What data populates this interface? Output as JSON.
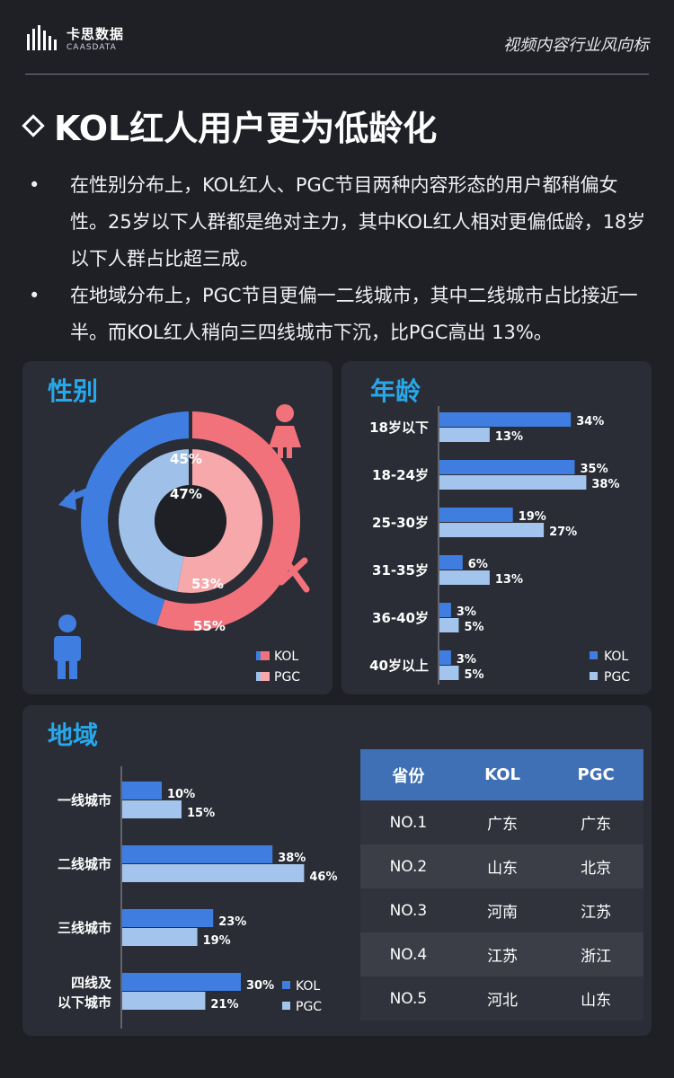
{
  "brand": {
    "name_cn": "卡思数据",
    "name_en": "CAASDATA"
  },
  "header": {
    "section": "视频内容行业风向标"
  },
  "title": "KOL红人用户更为低龄化",
  "bullets": [
    "在性别分布上，KOL红人、PGC节目两种内容形态的用户都稍偏女性。25岁以下人群都是绝对主力，其中KOL红人相对更偏低龄，18岁以下人群占比超三成。",
    "在地域分布上，PGC节目更偏一二线城市，其中二线城市占比接近一半。而KOL红人稍向三四线城市下沉，比PGC高出 13%。"
  ],
  "colors": {
    "kol_male": "#3f7ee0",
    "pgc_male": "#9fc0e8",
    "kol_female": "#f2727c",
    "pgc_female": "#f6a8aa",
    "kol_bar": "#3f7ee0",
    "pgc_bar": "#a3c4ec",
    "accent": "#28a8ea"
  },
  "panels": {
    "gender": "性别",
    "age": "年龄",
    "region": "地域"
  },
  "legend": {
    "kol": "KOL",
    "pgc": "PGC"
  },
  "icons": {
    "male": "male-symbol-icon",
    "female": "female-symbol-icon",
    "male_person": "male-person-icon",
    "female_person": "female-person-icon"
  },
  "chart_data": [
    {
      "type": "pie",
      "title": "性别",
      "series": [
        {
          "name": "KOL",
          "categories": [
            "男",
            "女"
          ],
          "values": [
            45,
            55
          ],
          "labels": [
            "45%",
            "55%"
          ]
        },
        {
          "name": "PGC",
          "categories": [
            "男",
            "女"
          ],
          "values": [
            47,
            53
          ],
          "labels": [
            "47%",
            "53%"
          ]
        }
      ]
    },
    {
      "type": "bar",
      "orientation": "horizontal",
      "title": "年龄",
      "categories": [
        "18岁以下",
        "18-24岁",
        "25-30岁",
        "31-35岁",
        "36-40岁",
        "40岁以上"
      ],
      "series": [
        {
          "name": "KOL",
          "values": [
            34,
            35,
            19,
            6,
            3,
            3
          ],
          "labels": [
            "34%",
            "35%",
            "19%",
            "6%",
            "3%",
            "3%"
          ]
        },
        {
          "name": "PGC",
          "values": [
            13,
            38,
            27,
            13,
            5,
            5
          ],
          "labels": [
            "13%",
            "38%",
            "27%",
            "13%",
            "5%",
            "5%"
          ]
        }
      ]
    },
    {
      "type": "bar",
      "orientation": "horizontal",
      "title": "地域",
      "categories": [
        "一线城市",
        "二线城市",
        "三线城市",
        "四线及以下城市"
      ],
      "category_lines": [
        [
          "一线城市"
        ],
        [
          "二线城市"
        ],
        [
          "三线城市"
        ],
        [
          "四线及",
          "以下城市"
        ]
      ],
      "series": [
        {
          "name": "KOL",
          "values": [
            10,
            38,
            23,
            30
          ],
          "labels": [
            "10%",
            "38%",
            "23%",
            "30%"
          ]
        },
        {
          "name": "PGC",
          "values": [
            15,
            46,
            19,
            21
          ],
          "labels": [
            "15%",
            "46%",
            "19%",
            "21%"
          ]
        }
      ]
    },
    {
      "type": "table",
      "columns": [
        "省份",
        "KOL",
        "PGC"
      ],
      "rows": [
        [
          "NO.1",
          "广东",
          "广东"
        ],
        [
          "NO.2",
          "山东",
          "北京"
        ],
        [
          "NO.3",
          "河南",
          "江苏"
        ],
        [
          "NO.4",
          "江苏",
          "浙江"
        ],
        [
          "NO.5",
          "河北",
          "山东"
        ]
      ]
    }
  ]
}
